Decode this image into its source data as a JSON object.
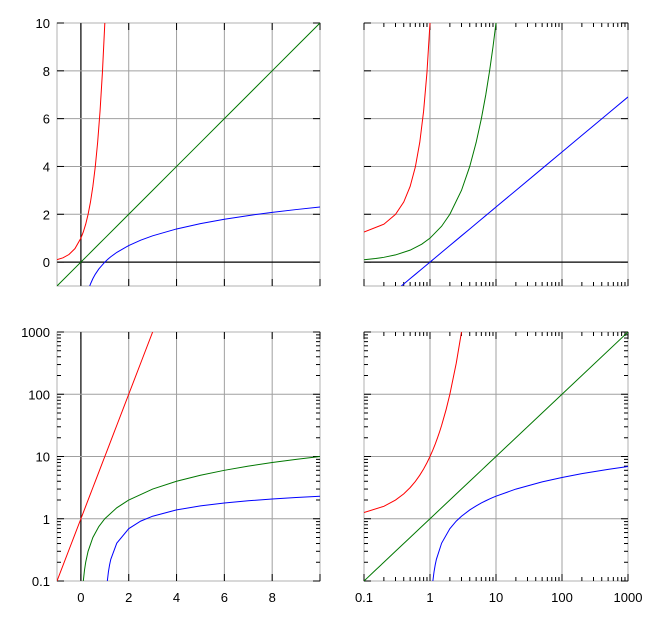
{
  "series": [
    {
      "color": "#ff0000",
      "x": [
        -1,
        -0.75,
        -0.5,
        -0.25,
        0,
        0.1,
        0.2,
        0.3,
        0.4,
        0.5,
        0.6,
        0.7,
        0.8,
        0.9,
        1,
        1.1,
        1.2,
        1.3,
        1.4,
        1.5,
        1.75,
        2,
        2.5,
        3
      ],
      "y": [
        0.1,
        0.1778,
        0.3162,
        0.5623,
        1,
        1.2589,
        1.5849,
        1.9953,
        2.5119,
        3.1623,
        3.9811,
        5.0119,
        6.3096,
        7.9433,
        10,
        12.589,
        15.849,
        19.953,
        25.119,
        31.623,
        56.234,
        100,
        316.23,
        1000
      ]
    },
    {
      "color": "#007700",
      "x": [
        -1,
        0.1,
        0.15,
        0.2,
        0.3,
        0.5,
        0.75,
        1,
        1.5,
        2,
        3,
        4,
        5,
        6,
        7,
        8,
        9,
        10,
        100,
        1000
      ],
      "y": [
        -1,
        0.1,
        0.15,
        0.2,
        0.3,
        0.5,
        0.75,
        1,
        1.5,
        2,
        3,
        4,
        5,
        6,
        7,
        8,
        9,
        10,
        100,
        1000
      ]
    },
    {
      "color": "#0000ff",
      "x": [
        0.3679,
        0.4,
        0.5,
        0.6,
        0.75,
        1,
        1.1,
        1.105,
        1.15,
        1.2,
        1.25,
        1.5,
        2,
        2.5,
        3,
        4,
        5,
        6,
        7,
        8,
        9,
        10,
        20,
        50,
        100,
        200,
        500,
        1000
      ],
      "y": [
        -1,
        -0.916,
        -0.693,
        -0.511,
        -0.288,
        0,
        0.0953,
        0.1,
        0.1398,
        0.1823,
        0.2231,
        0.4055,
        0.6931,
        0.9163,
        1.0986,
        1.3863,
        1.6094,
        1.7918,
        1.9459,
        2.0794,
        2.1972,
        2.3026,
        2.9957,
        3.912,
        4.6052,
        5.2983,
        6.2146,
        6.9078
      ]
    }
  ],
  "chart_data": [
    {
      "type": "line",
      "xscale": "linear",
      "yscale": "linear",
      "xlim": [
        -1,
        10
      ],
      "ylim": [
        -1,
        10
      ],
      "xticks": [
        0,
        2,
        4,
        6,
        8,
        10
      ],
      "yticks": [
        0,
        2,
        4,
        6,
        8,
        10
      ],
      "xticklabels": [],
      "yticklabels": [
        "0",
        "2",
        "4",
        "6",
        "8",
        "10"
      ],
      "axis_x0": true,
      "axis_y0": true
    },
    {
      "type": "line",
      "xscale": "log",
      "yscale": "linear",
      "xlim": [
        0.1,
        1000
      ],
      "ylim": [
        -1,
        10
      ],
      "xticks": [
        0.1,
        1,
        10,
        100,
        1000
      ],
      "yticks": [
        0,
        2,
        4,
        6,
        8,
        10
      ],
      "xticklabels": [],
      "yticklabels": [],
      "axis_x0": false,
      "axis_y0": true
    },
    {
      "type": "line",
      "xscale": "linear",
      "yscale": "log",
      "xlim": [
        -1,
        10
      ],
      "ylim": [
        0.1,
        1000
      ],
      "xticks": [
        0,
        2,
        4,
        6,
        8,
        10
      ],
      "yticks": [
        0.1,
        1,
        10,
        100,
        1000
      ],
      "xticklabels": [
        "0",
        "2",
        "4",
        "6",
        "8"
      ],
      "yticklabels": [
        "0.1",
        "1",
        "10",
        "100",
        "1000"
      ],
      "axis_x0": true,
      "axis_y0": false
    },
    {
      "type": "line",
      "xscale": "log",
      "yscale": "log",
      "xlim": [
        0.1,
        1000
      ],
      "ylim": [
        0.1,
        1000
      ],
      "xticks": [
        0.1,
        1,
        10,
        100,
        1000
      ],
      "yticks": [
        0.1,
        1,
        10,
        100,
        1000
      ],
      "xticklabels": [
        "0.1",
        "1",
        "10",
        "100",
        "1000"
      ],
      "yticklabels": [],
      "axis_x0": false,
      "axis_y0": false
    }
  ]
}
